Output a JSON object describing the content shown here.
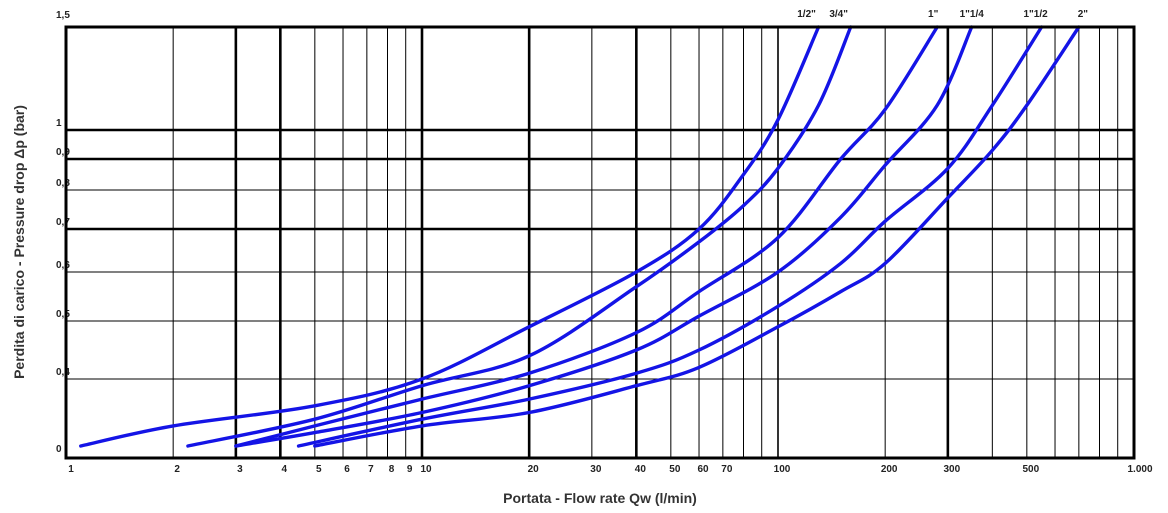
{
  "chart_data": {
    "type": "line",
    "title": "",
    "xlabel": "Portata - Flow rate Qw (l/min)",
    "ylabel": "Perdita di carico - Pressure drop Δp (bar)",
    "x_scale": "log",
    "xlim": [
      1,
      1000
    ],
    "grid": true,
    "line_color": "#1414e6",
    "x_ticks": [
      {
        "v": 1,
        "label": "1"
      },
      {
        "v": 2,
        "label": "2"
      },
      {
        "v": 3,
        "label": "3"
      },
      {
        "v": 4,
        "label": "4"
      },
      {
        "v": 5,
        "label": "5"
      },
      {
        "v": 6,
        "label": "6"
      },
      {
        "v": 7,
        "label": "7"
      },
      {
        "v": 8,
        "label": "8"
      },
      {
        "v": 9,
        "label": "9"
      },
      {
        "v": 10,
        "label": "10"
      },
      {
        "v": 20,
        "label": "20"
      },
      {
        "v": 30,
        "label": "30"
      },
      {
        "v": 40,
        "label": "40"
      },
      {
        "v": 50,
        "label": "50"
      },
      {
        "v": 60,
        "label": "60"
      },
      {
        "v": 70,
        "label": "70"
      },
      {
        "v": 100,
        "label": "100"
      },
      {
        "v": 200,
        "label": "200"
      },
      {
        "v": 300,
        "label": "300"
      },
      {
        "v": 500,
        "label": "500"
      },
      {
        "v": 1000,
        "label": "1.000"
      }
    ],
    "y_ticks": [
      {
        "v": 1.5,
        "label": "1,5"
      },
      {
        "v": 1.0,
        "label": "1"
      },
      {
        "v": 0.9,
        "label": "0,9"
      },
      {
        "v": 0.8,
        "label": "0,8"
      },
      {
        "v": 0.7,
        "label": "0,7"
      },
      {
        "v": 0.6,
        "label": "0,6"
      },
      {
        "v": 0.5,
        "label": "0,5"
      },
      {
        "v": 0.4,
        "label": "0,4"
      },
      {
        "v": 0.0,
        "label": "0"
      }
    ],
    "series": [
      {
        "name": "1/2\"",
        "points": [
          [
            1.1,
            0.3
          ],
          [
            2,
            0.33
          ],
          [
            5,
            0.36
          ],
          [
            10,
            0.4
          ],
          [
            20,
            0.49
          ],
          [
            40,
            0.6
          ],
          [
            60,
            0.7
          ],
          [
            80,
            0.85
          ],
          [
            100,
            1.05
          ],
          [
            130,
            1.5
          ]
        ]
      },
      {
        "name": "3/4\"",
        "points": [
          [
            2.2,
            0.3
          ],
          [
            5,
            0.34
          ],
          [
            10,
            0.39
          ],
          [
            20,
            0.44
          ],
          [
            40,
            0.57
          ],
          [
            60,
            0.67
          ],
          [
            80,
            0.76
          ],
          [
            100,
            0.87
          ],
          [
            130,
            1.12
          ],
          [
            160,
            1.5
          ]
        ]
      },
      {
        "name": "1\"",
        "points": [
          [
            3,
            0.3
          ],
          [
            5,
            0.33
          ],
          [
            10,
            0.37
          ],
          [
            20,
            0.41
          ],
          [
            40,
            0.48
          ],
          [
            60,
            0.56
          ],
          [
            100,
            0.68
          ],
          [
            150,
            0.9
          ],
          [
            200,
            1.1
          ],
          [
            280,
            1.5
          ]
        ]
      },
      {
        "name": "1\"1/4",
        "points": [
          [
            3,
            0.3
          ],
          [
            5,
            0.32
          ],
          [
            10,
            0.35
          ],
          [
            20,
            0.39
          ],
          [
            40,
            0.45
          ],
          [
            60,
            0.51
          ],
          [
            100,
            0.6
          ],
          [
            150,
            0.73
          ],
          [
            200,
            0.88
          ],
          [
            280,
            1.12
          ],
          [
            350,
            1.5
          ]
        ]
      },
      {
        "name": "1\"1/2",
        "points": [
          [
            4.5,
            0.3
          ],
          [
            10,
            0.34
          ],
          [
            20,
            0.37
          ],
          [
            40,
            0.41
          ],
          [
            60,
            0.45
          ],
          [
            100,
            0.53
          ],
          [
            150,
            0.62
          ],
          [
            200,
            0.72
          ],
          [
            300,
            0.87
          ],
          [
            400,
            1.12
          ],
          [
            550,
            1.5
          ]
        ]
      },
      {
        "name": "2\"",
        "points": [
          [
            5,
            0.3
          ],
          [
            10,
            0.33
          ],
          [
            20,
            0.35
          ],
          [
            40,
            0.39
          ],
          [
            60,
            0.42
          ],
          [
            100,
            0.49
          ],
          [
            150,
            0.56
          ],
          [
            200,
            0.62
          ],
          [
            300,
            0.78
          ],
          [
            400,
            0.93
          ],
          [
            500,
            1.12
          ],
          [
            700,
            1.5
          ]
        ]
      }
    ]
  }
}
